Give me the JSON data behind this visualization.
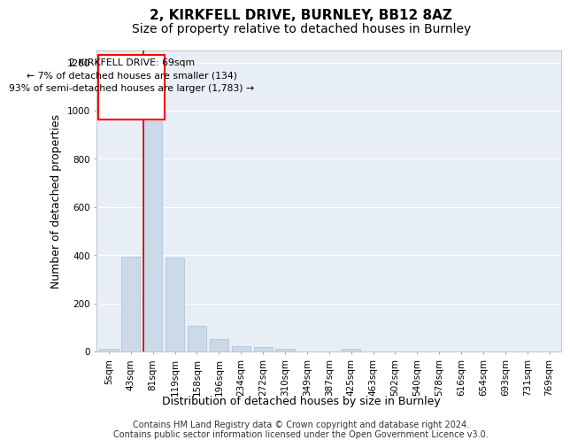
{
  "title1": "2, KIRKFELL DRIVE, BURNLEY, BB12 8AZ",
  "title2": "Size of property relative to detached houses in Burnley",
  "xlabel": "Distribution of detached houses by size in Burnley",
  "ylabel": "Number of detached properties",
  "categories": [
    "5sqm",
    "43sqm",
    "81sqm",
    "119sqm",
    "158sqm",
    "196sqm",
    "234sqm",
    "272sqm",
    "310sqm",
    "349sqm",
    "387sqm",
    "425sqm",
    "463sqm",
    "502sqm",
    "540sqm",
    "578sqm",
    "616sqm",
    "654sqm",
    "693sqm",
    "731sqm",
    "769sqm"
  ],
  "values": [
    10,
    395,
    955,
    390,
    105,
    52,
    22,
    20,
    10,
    0,
    0,
    12,
    0,
    0,
    0,
    0,
    0,
    0,
    0,
    0,
    0
  ],
  "bar_color": "#ccd9e8",
  "bar_edge_color": "#b0c4d8",
  "annotation_text": "2 KIRKFELL DRIVE: 69sqm\n← 7% of detached houses are smaller (134)\n93% of semi-detached houses are larger (1,783) →",
  "annotation_box_edge_color": "red",
  "property_line_color": "#cc0000",
  "ylim": [
    0,
    1250
  ],
  "yticks": [
    0,
    200,
    400,
    600,
    800,
    1000,
    1200
  ],
  "footer_line1": "Contains HM Land Registry data © Crown copyright and database right 2024.",
  "footer_line2": "Contains public sector information licensed under the Open Government Licence v3.0.",
  "plot_bg_color": "#e8eef5",
  "grid_color": "#ffffff",
  "title1_fontsize": 11,
  "title2_fontsize": 10,
  "axis_label_fontsize": 9,
  "tick_fontsize": 7.5,
  "annotation_fontsize": 7.8,
  "footer_fontsize": 7.0
}
